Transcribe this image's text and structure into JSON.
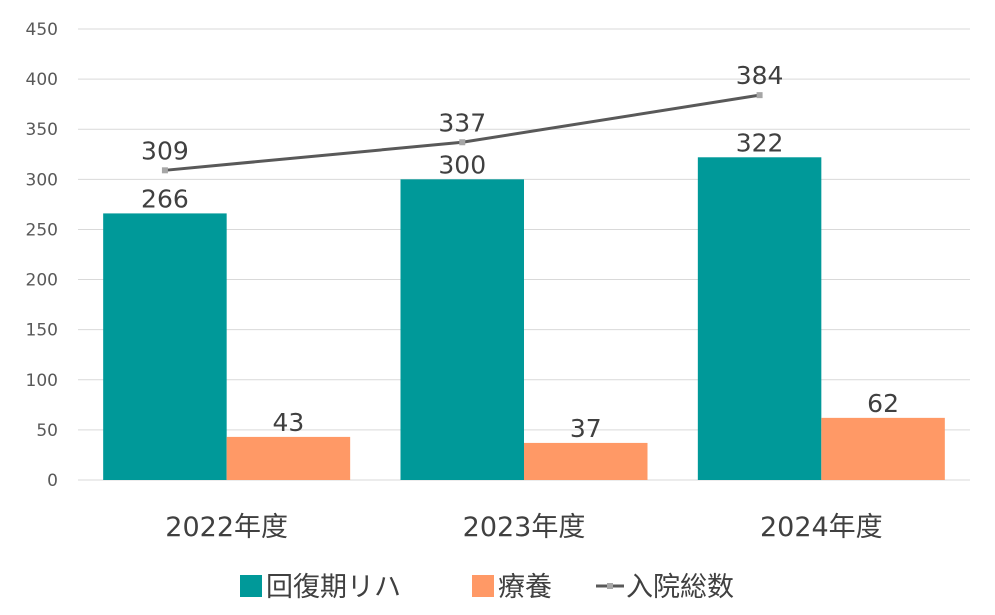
{
  "chart_data": {
    "type": "bar",
    "categories": [
      "2022年度",
      "2023年度",
      "2024年度"
    ],
    "series": [
      {
        "name": "回復期リハ",
        "type": "bar",
        "color": "#009999",
        "values": [
          266,
          300,
          322
        ]
      },
      {
        "name": "療養",
        "type": "bar",
        "color": "#FF9966",
        "values": [
          43,
          37,
          62
        ]
      },
      {
        "name": "入院総数",
        "type": "line",
        "color": "#595959",
        "marker_color": "#A6A6A6",
        "values": [
          309,
          337,
          384
        ]
      }
    ],
    "ylim": [
      0,
      450
    ],
    "yticks": [
      0,
      50,
      100,
      150,
      200,
      250,
      300,
      350,
      400,
      450
    ],
    "grid": true,
    "legend": "bottom",
    "data_labels": true
  }
}
